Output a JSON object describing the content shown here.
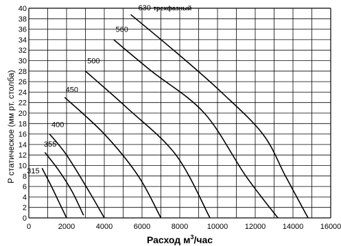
{
  "chart_data": {
    "type": "line",
    "xlabel_main": "Расход м",
    "xlabel_sup": "3",
    "xlabel_tail": "/час",
    "ylabel": "Р статическое (мм рт. столба)",
    "xlim": [
      0,
      16000
    ],
    "ylim": [
      0,
      40
    ],
    "x_ticks": [
      "0",
      "2000",
      "4000",
      "6000",
      "8000",
      "10000",
      "12000",
      "14000",
      "16000"
    ],
    "y_ticks": [
      "0",
      "2",
      "4",
      "6",
      "8",
      "10",
      "12",
      "14",
      "16",
      "18",
      "20",
      "22",
      "24",
      "26",
      "28",
      "30",
      "32",
      "34",
      "36",
      "38",
      "40"
    ],
    "grid": true,
    "series": [
      {
        "name": "315",
        "label_pos": [
          -100,
          8.5
        ],
        "points": [
          [
            700,
            9.5
          ],
          [
            1200,
            6
          ],
          [
            1600,
            3
          ],
          [
            2000,
            0
          ]
        ]
      },
      {
        "name": "355",
        "label_pos": [
          800,
          13.6
        ],
        "points": [
          [
            850,
            12.5
          ],
          [
            1600,
            9
          ],
          [
            2300,
            5
          ],
          [
            2900,
            0.5
          ]
        ]
      },
      {
        "name": "400",
        "label_pos": [
          1200,
          17.3
        ],
        "points": [
          [
            1100,
            16
          ],
          [
            2000,
            12
          ],
          [
            3200,
            5
          ],
          [
            4000,
            0
          ]
        ]
      },
      {
        "name": "450",
        "label_pos": [
          1950,
          24.0
        ],
        "points": [
          [
            1900,
            23
          ],
          [
            4000,
            16
          ],
          [
            5800,
            8
          ],
          [
            7000,
            0
          ]
        ]
      },
      {
        "name": "500",
        "label_pos": [
          3100,
          29.5
        ],
        "points": [
          [
            3000,
            28
          ],
          [
            5200,
            21
          ],
          [
            7800,
            12
          ],
          [
            9600,
            0
          ]
        ]
      },
      {
        "name": "560",
        "label_pos": [
          4600,
          35.5
        ],
        "points": [
          [
            4500,
            34
          ],
          [
            6500,
            28
          ],
          [
            9300,
            20
          ],
          [
            11500,
            8
          ],
          [
            13200,
            0
          ]
        ]
      },
      {
        "name": "630",
        "extra_label": "трехфазный",
        "label_pos": [
          5800,
          39.6
        ],
        "points": [
          [
            5400,
            38.8
          ],
          [
            8000,
            31
          ],
          [
            10200,
            24
          ],
          [
            12400,
            16
          ],
          [
            13600,
            8
          ],
          [
            14800,
            0
          ]
        ]
      }
    ]
  }
}
